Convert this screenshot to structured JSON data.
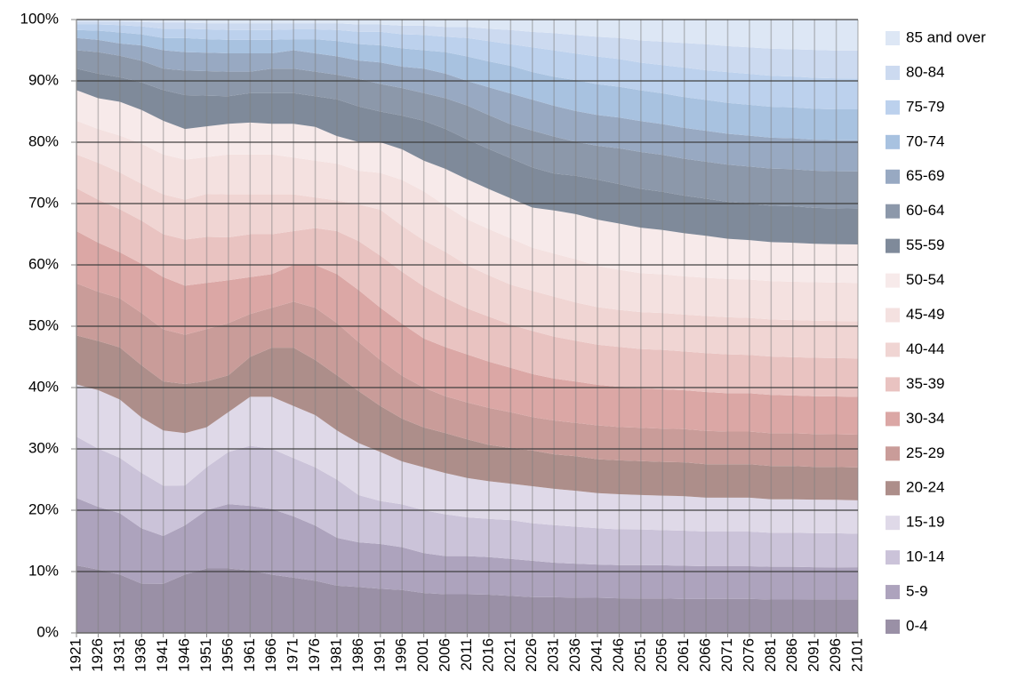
{
  "chart_data": {
    "type": "area",
    "stacking": "percent",
    "x": [
      1921,
      1926,
      1931,
      1936,
      1941,
      1946,
      1951,
      1956,
      1961,
      1966,
      1971,
      1976,
      1981,
      1986,
      1991,
      1996,
      2001,
      2006,
      2011,
      2016,
      2021,
      2026,
      2031,
      2036,
      2041,
      2046,
      2051,
      2056,
      2061,
      2066,
      2071,
      2076,
      2081,
      2086,
      2091,
      2096,
      2101
    ],
    "xlim": [
      1921,
      2101
    ],
    "ylim": [
      0,
      100
    ],
    "yticks": [
      {
        "value": 0,
        "label": "0%"
      },
      {
        "value": 10,
        "label": "10%"
      },
      {
        "value": 20,
        "label": "20%"
      },
      {
        "value": 30,
        "label": "30%"
      },
      {
        "value": 40,
        "label": "40%"
      },
      {
        "value": 50,
        "label": "50%"
      },
      {
        "value": 60,
        "label": "60%"
      },
      {
        "value": 70,
        "label": "70%"
      },
      {
        "value": 80,
        "label": "80%"
      },
      {
        "value": 90,
        "label": "90%"
      },
      {
        "value": 100,
        "label": "100%"
      }
    ],
    "grid": true,
    "legend": "right",
    "series": [
      {
        "name": "0-4",
        "color": "#9a90a6",
        "values": [
          11,
          10.3,
          9.5,
          8,
          8,
          9.5,
          10.5,
          10.5,
          10.2,
          9.5,
          9,
          8.5,
          7.7,
          7.5,
          7.2,
          7,
          6.5,
          6.3,
          6.3,
          6.2,
          6,
          5.8,
          5.8,
          5.7,
          5.7,
          5.6,
          5.6,
          5.6,
          5.5,
          5.5,
          5.5,
          5.5,
          5.4,
          5.4,
          5.4,
          5.4,
          5.4
        ]
      },
      {
        "name": "5-9",
        "color": "#ada3bd",
        "values": [
          11,
          10.2,
          10,
          9,
          7.8,
          8,
          9.5,
          10.5,
          10.5,
          10.7,
          10,
          9,
          7.8,
          7.3,
          7.3,
          7,
          6.5,
          6.2,
          6.2,
          6.1,
          6,
          5.9,
          5.6,
          5.5,
          5.4,
          5.4,
          5.4,
          5.4,
          5.4,
          5.3,
          5.3,
          5.3,
          5.3,
          5.3,
          5.2,
          5.2,
          5.2
        ]
      },
      {
        "name": "10-14",
        "color": "#cbc3d9",
        "values": [
          10,
          9.5,
          9,
          9,
          8.2,
          6.5,
          7,
          8.5,
          9.8,
          9.8,
          9.5,
          9.5,
          9.5,
          7.7,
          7,
          7,
          7,
          6.8,
          6.3,
          6.2,
          6.3,
          6.1,
          6.1,
          6,
          5.9,
          5.8,
          5.8,
          5.7,
          5.7,
          5.6,
          5.6,
          5.6,
          5.5,
          5.5,
          5.5,
          5.5,
          5.4
        ]
      },
      {
        "name": "15-19",
        "color": "#dfd9e8",
        "values": [
          8.5,
          9.5,
          9.5,
          9,
          9,
          8.5,
          6.5,
          6.5,
          8,
          8.5,
          8.5,
          8.5,
          8,
          8.5,
          8,
          7,
          7,
          6.7,
          6.4,
          6.1,
          5.9,
          6,
          5.9,
          5.8,
          5.7,
          5.7,
          5.6,
          5.6,
          5.6,
          5.5,
          5.5,
          5.5,
          5.4,
          5.4,
          5.4,
          5.4,
          5.4
        ]
      },
      {
        "name": "20-24",
        "color": "#ad8e8a",
        "values": [
          8,
          8,
          8.5,
          8.5,
          8,
          8,
          7.5,
          6,
          6.5,
          8,
          9.5,
          9,
          9,
          8.5,
          7.5,
          7,
          6.5,
          6.5,
          6.3,
          5.9,
          5.8,
          5.8,
          5.6,
          5.6,
          5.5,
          5.5,
          5.5,
          5.5,
          5.5,
          5.4,
          5.4,
          5.4,
          5.4,
          5.4,
          5.3,
          5.3,
          5.3
        ]
      },
      {
        "name": "25-29",
        "color": "#c99c99",
        "values": [
          8.5,
          8,
          8,
          8.5,
          8.5,
          8,
          8.5,
          8.5,
          7,
          6.5,
          7.5,
          8.5,
          8.5,
          8,
          7.5,
          7,
          6.5,
          6,
          6,
          6,
          5.8,
          5.4,
          5.5,
          5.4,
          5.5,
          5.4,
          5.4,
          5.4,
          5.4,
          5.4,
          5.3,
          5.3,
          5.3,
          5.3,
          5.3,
          5.3,
          5.3
        ]
      },
      {
        "name": "30-34",
        "color": "#dba7a5",
        "values": [
          8.5,
          8,
          7.5,
          8,
          8.5,
          8,
          7.5,
          7,
          6,
          5.5,
          6,
          7,
          8,
          8.5,
          8.5,
          8.5,
          8,
          8,
          7.8,
          7.5,
          7.2,
          7,
          6.8,
          6.7,
          6.6,
          6.5,
          6.4,
          6.4,
          6.3,
          6.3,
          6.2,
          6.2,
          6.2,
          6.1,
          6.1,
          6.1,
          6.1
        ]
      },
      {
        "name": "35-39",
        "color": "#e9c3c1",
        "values": [
          7,
          7,
          7,
          7,
          7,
          7.5,
          7.5,
          7,
          7,
          6.5,
          5.5,
          6,
          7,
          8,
          8.5,
          8.5,
          8.5,
          8,
          7.5,
          7.3,
          7,
          7,
          6.8,
          6.6,
          6.5,
          6.5,
          6.4,
          6.4,
          6.3,
          6.3,
          6.3,
          6.2,
          6.2,
          6.2,
          6.2,
          6.2,
          6.2
        ]
      },
      {
        "name": "40-44",
        "color": "#f0d5d3",
        "values": [
          5.5,
          6,
          6,
          6,
          6.5,
          6.5,
          7,
          7,
          6.5,
          6.5,
          6,
          5,
          5,
          6,
          7.5,
          7.5,
          7.5,
          7.5,
          7,
          6.7,
          6.5,
          6.5,
          6.5,
          6.2,
          6.1,
          6,
          6,
          6,
          6,
          6,
          6,
          6,
          6,
          6,
          6,
          6,
          6
        ]
      },
      {
        "name": "45-49",
        "color": "#f4e1e0",
        "values": [
          5.5,
          5.5,
          6,
          6.5,
          6.5,
          6.5,
          6,
          6.5,
          6.5,
          6.5,
          6,
          6,
          6,
          5.5,
          6,
          7.5,
          8,
          7.5,
          7.5,
          7.5,
          7.5,
          7,
          7,
          7,
          6.7,
          6.5,
          6.3,
          6.3,
          6.2,
          6.2,
          6.2,
          6.2,
          6.2,
          6.2,
          6.2,
          6.2,
          6.2
        ]
      },
      {
        "name": "50-54",
        "color": "#f7eaea",
        "values": [
          5,
          5,
          5.5,
          5.5,
          5.5,
          5,
          5,
          5,
          5.2,
          5,
          5.5,
          5.5,
          4.5,
          4.7,
          5,
          5,
          5,
          6,
          6.5,
          6.5,
          6.5,
          6.5,
          7,
          7.3,
          7.5,
          7.5,
          7.4,
          7.2,
          7,
          6.8,
          6.5,
          6.4,
          6.3,
          6.3,
          6.2,
          6.2,
          6.2
        ]
      },
      {
        "name": "55-59",
        "color": "#7f8a9a",
        "values": [
          3.5,
          4,
          4,
          4.5,
          5,
          5.5,
          5,
          4.5,
          4.8,
          5,
          5,
          5,
          6,
          5.8,
          5,
          5.5,
          6.5,
          6.5,
          6.5,
          6.5,
          6.5,
          6.5,
          6,
          6.2,
          6.5,
          6.4,
          6.3,
          6.2,
          6.1,
          6,
          6,
          5.9,
          5.9,
          5.9,
          5.8,
          5.8,
          5.8
        ]
      },
      {
        "name": "60-64",
        "color": "#8c98aa",
        "values": [
          3,
          3.5,
          3.5,
          3.5,
          3.5,
          4,
          4,
          4,
          3.5,
          4,
          4,
          4,
          4,
          4.5,
          4.5,
          4.5,
          4.5,
          5,
          5.5,
          5.5,
          5.5,
          6,
          6,
          5.5,
          5.5,
          5.8,
          6,
          6,
          6,
          6,
          6,
          6,
          6,
          6,
          6,
          6,
          6
        ]
      },
      {
        "name": "65-69",
        "color": "#98a9c2",
        "values": [
          2,
          2,
          2,
          2.5,
          3,
          3,
          3,
          3,
          3,
          2.5,
          3,
          3,
          3,
          3,
          3.5,
          3.5,
          4,
          4,
          4,
          4.5,
          5,
          5,
          5,
          5,
          5,
          5,
          5,
          5,
          5,
          5,
          5,
          5,
          5,
          5,
          5,
          5,
          5
        ]
      },
      {
        "name": "70-74",
        "color": "#a8c2e0",
        "values": [
          1.3,
          1.5,
          1.8,
          1.8,
          2,
          2.3,
          2.2,
          2.2,
          2.2,
          2.2,
          1.8,
          2.3,
          2.5,
          2.7,
          2.8,
          3,
          3,
          3.5,
          4,
          4.2,
          4.5,
          4.5,
          4.7,
          5,
          5,
          5,
          5,
          5,
          5,
          5,
          5,
          5,
          5,
          5,
          5,
          5,
          5
        ]
      },
      {
        "name": "75-79",
        "color": "#bcd1ed",
        "values": [
          0.9,
          1,
          1.2,
          1.3,
          1.5,
          1.5,
          1.6,
          1.6,
          1.6,
          1.6,
          1.6,
          1.6,
          1.8,
          2,
          2.2,
          2.3,
          2.5,
          2.5,
          3,
          3.3,
          3.5,
          4,
          4.3,
          4.3,
          4.5,
          4.5,
          4.5,
          4.6,
          4.8,
          4.8,
          5,
          5,
          5,
          5,
          5,
          5,
          5
        ]
      },
      {
        "name": "80-84",
        "color": "#ccdaf0",
        "values": [
          0.5,
          0.5,
          0.6,
          0.7,
          1,
          1,
          1,
          1.1,
          1.1,
          1.1,
          1,
          1,
          1.1,
          1.2,
          1.2,
          1.4,
          1.5,
          1.6,
          1.8,
          2,
          2.3,
          2.5,
          2.8,
          3,
          3.2,
          3.4,
          3.6,
          3.8,
          4,
          4.2,
          4.2,
          4.3,
          4.4,
          4.4,
          4.5,
          4.5,
          4.5
        ]
      },
      {
        "name": "85 and over",
        "color": "#dde7f5",
        "values": [
          0.3,
          0.3,
          0.3,
          0.4,
          0.5,
          0.5,
          0.6,
          0.6,
          0.6,
          0.6,
          0.6,
          0.6,
          0.6,
          0.8,
          0.8,
          1,
          1,
          1.2,
          1.2,
          1.5,
          1.7,
          2,
          2.2,
          2.5,
          2.8,
          3,
          3.4,
          3.6,
          3.8,
          4,
          4.3,
          4.5,
          4.7,
          4.8,
          4.9,
          5,
          5
        ]
      }
    ]
  }
}
